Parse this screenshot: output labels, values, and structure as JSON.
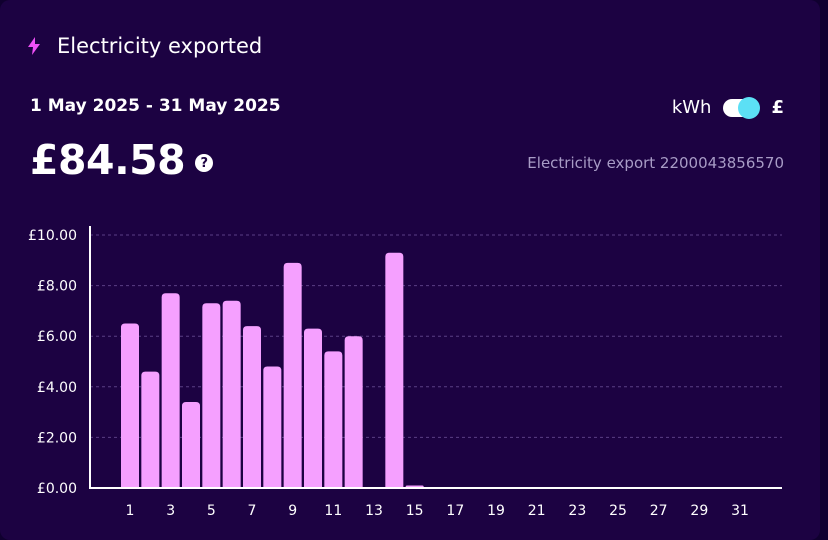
{
  "header": {
    "title": "Electricity exported",
    "icon": "lightning-bolt-icon",
    "icon_color": "#f050f8"
  },
  "period": {
    "label": "1 May 2025 - 31 May 2025"
  },
  "summary": {
    "amount": "£84.58",
    "help_glyph": "?"
  },
  "unit_toggle": {
    "left_label": "kWh",
    "right_label": "£",
    "selected": "£"
  },
  "meter": {
    "label": "Electricity export 2200043856570"
  },
  "chart_data": {
    "type": "bar",
    "x": [
      1,
      2,
      3,
      4,
      5,
      6,
      7,
      8,
      9,
      10,
      11,
      12,
      13,
      14,
      15,
      16,
      17,
      18,
      19,
      20,
      21,
      22,
      23,
      24,
      25,
      26,
      27,
      28,
      29,
      30,
      31
    ],
    "x_tick_labels": [
      "1",
      "3",
      "5",
      "7",
      "9",
      "11",
      "13",
      "15",
      "17",
      "19",
      "21",
      "23",
      "25",
      "27",
      "29",
      "31"
    ],
    "values": [
      6.5,
      4.6,
      7.7,
      3.4,
      7.3,
      7.4,
      6.4,
      4.8,
      8.9,
      6.3,
      5.4,
      6.0,
      0,
      9.3,
      0.1,
      0,
      0,
      0,
      0,
      0,
      0,
      0,
      0,
      0,
      0,
      0,
      0,
      0,
      0,
      0,
      0
    ],
    "y_tick_labels": [
      "£0.00",
      "£2.00",
      "£4.00",
      "£6.00",
      "£8.00",
      "£10.00"
    ],
    "y_ticks": [
      0,
      2,
      4,
      6,
      8,
      10
    ],
    "ylim": [
      0,
      10
    ],
    "grid": "horizontal dashed",
    "bar_color": "#f5a0ff"
  }
}
